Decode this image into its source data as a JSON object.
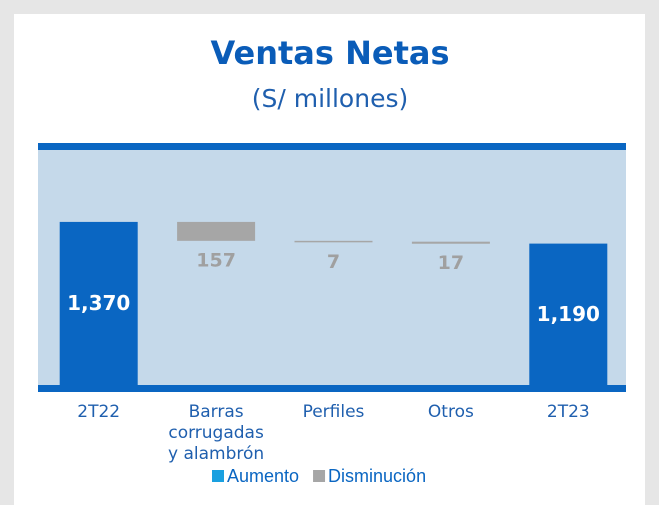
{
  "chart_data": {
    "type": "waterfall",
    "title": "Ventas Netas",
    "subtitle": "(S/ millones)",
    "categories": [
      "2T22",
      "Barras corrugadas y alambrón",
      "Perfiles",
      "Otros",
      "2T23"
    ],
    "values": [
      1370,
      -157,
      -7,
      -17,
      1190
    ],
    "value_labels": [
      "1,370",
      "157",
      "7",
      "17",
      "1,190"
    ],
    "totals": [
      true,
      false,
      false,
      false,
      true
    ],
    "colors": {
      "total": "#0a66c2",
      "decrease": "#a6a6a6",
      "increase": "#1aa0e0"
    },
    "legend": [
      {
        "name": "Aumento",
        "color": "#1aa0e0"
      },
      {
        "name": "Disminución",
        "color": "#a6a6a6"
      }
    ],
    "ylim": [
      0,
      2000
    ]
  }
}
